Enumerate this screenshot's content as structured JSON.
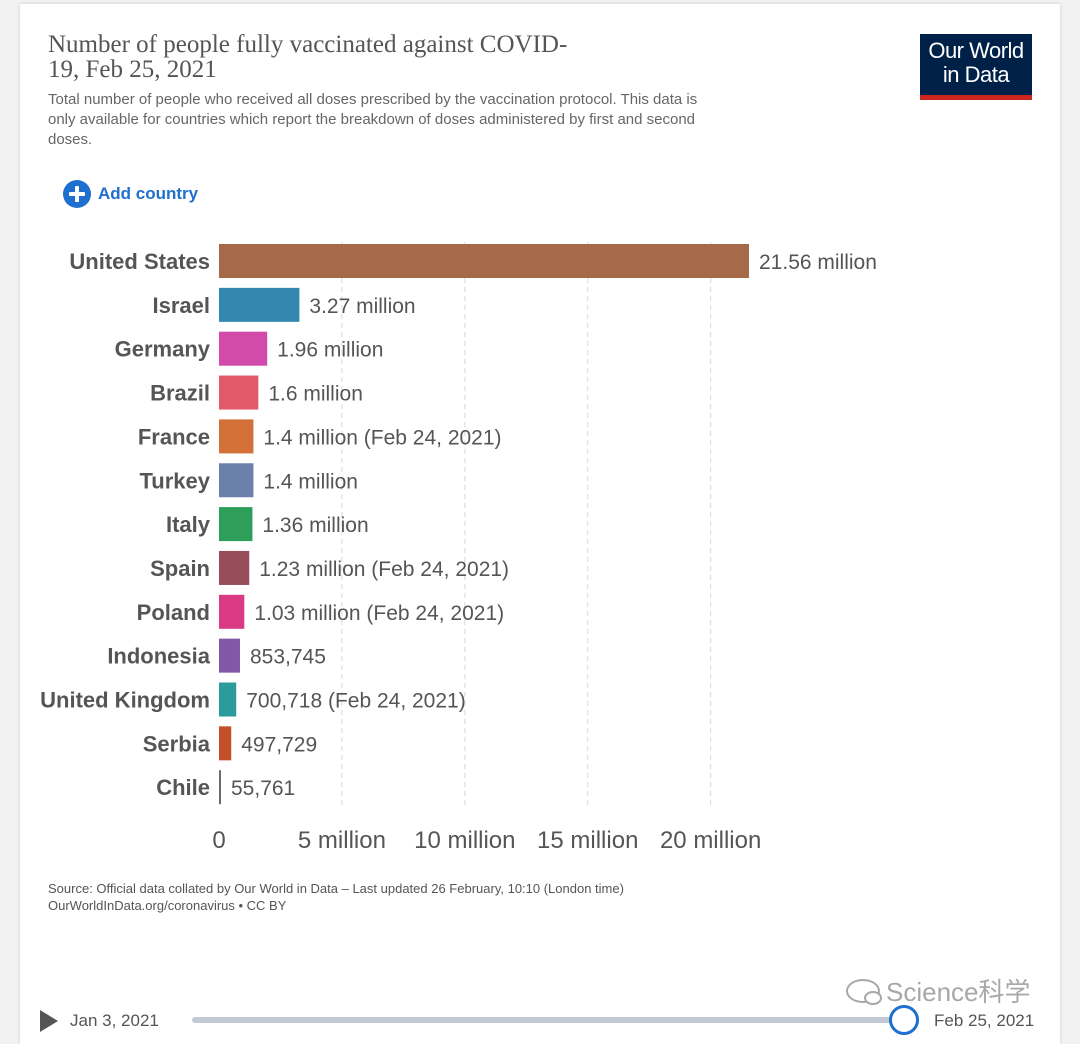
{
  "header": {
    "title": "Number of people fully vaccinated against COVID-19, Feb 25, 2021",
    "subtitle": "Total number of people who received all doses prescribed by the vaccination protocol. This data is only available for countries which report the breakdown of doses administered by first and second doses.",
    "logo_line1": "Our World",
    "logo_line2": "in Data"
  },
  "controls": {
    "add_country_label": "Add country"
  },
  "chart_data": {
    "type": "bar",
    "orientation": "horizontal",
    "title": "Number of people fully vaccinated against COVID-19, Feb 25, 2021",
    "categories": [
      "United States",
      "Israel",
      "Germany",
      "Brazil",
      "France",
      "Turkey",
      "Italy",
      "Spain",
      "Poland",
      "Indonesia",
      "United Kingdom",
      "Serbia",
      "Chile"
    ],
    "values": [
      21560000,
      3270000,
      1960000,
      1600000,
      1400000,
      1400000,
      1360000,
      1230000,
      1030000,
      853745,
      700718,
      497729,
      55761
    ],
    "value_labels": [
      "21.56 million",
      "3.27 million",
      "1.96 million",
      "1.6 million",
      "1.4 million (Feb 24, 2021)",
      "1.4 million",
      "1.36 million",
      "1.23 million (Feb 24, 2021)",
      "1.03 million (Feb 24, 2021)",
      "853,745",
      "700,718 (Feb 24, 2021)",
      "497,729",
      "55,761"
    ],
    "colors": [
      "#a6694a",
      "#3388b0",
      "#d24bab",
      "#e05a6a",
      "#d27038",
      "#6b80ab",
      "#2e9e5b",
      "#984e59",
      "#d93a83",
      "#8158a8",
      "#2b9b9b",
      "#c3502b",
      "#6b6b6b"
    ],
    "xlim": [
      0,
      21560000
    ],
    "x_ticks": [
      0,
      5000000,
      10000000,
      15000000,
      20000000
    ],
    "x_tick_labels": [
      "0",
      "5 million",
      "10 million",
      "15 million",
      "20 million"
    ],
    "grid": "vertical-dashed"
  },
  "footer": {
    "source_line1": "Source: Official data collated by Our World in Data – Last updated 26 February, 10:10 (London time)",
    "source_line2": "OurWorldInData.org/coronavirus • CC BY"
  },
  "timeline": {
    "start_label": "Jan 3, 2021",
    "end_label": "Feb 25, 2021",
    "position": 1.0
  },
  "watermark": {
    "text": "Science科学"
  }
}
